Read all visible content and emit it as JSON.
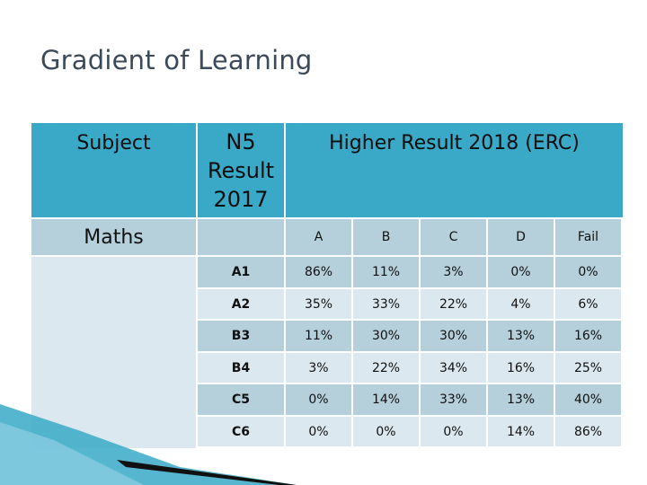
{
  "slide": {
    "title": "Gradient of Learning"
  },
  "table": {
    "subject_header": "Subject",
    "n5_header": "N5 Result 2017",
    "higher_header": "Higher Result 2018 (ERC)",
    "subject_value": "Maths",
    "grade_columns": [
      "A",
      "B",
      "C",
      "D",
      "Fail"
    ],
    "rows": [
      {
        "label": "A1",
        "values": [
          "86%",
          "11%",
          "3%",
          "0%",
          "0%"
        ]
      },
      {
        "label": "A2",
        "values": [
          "35%",
          "33%",
          "22%",
          "4%",
          "6%"
        ]
      },
      {
        "label": "B3",
        "values": [
          "11%",
          "30%",
          "30%",
          "13%",
          "16%"
        ]
      },
      {
        "label": "B4",
        "values": [
          "3%",
          "22%",
          "34%",
          "16%",
          "25%"
        ]
      },
      {
        "label": "C5",
        "values": [
          "0%",
          "14%",
          "33%",
          "13%",
          "40%"
        ]
      },
      {
        "label": "C6",
        "values": [
          "0%",
          "0%",
          "0%",
          "14%",
          "86%"
        ]
      }
    ]
  },
  "colors": {
    "header": "#3aa9c7",
    "row_dark": "#b5cfdb",
    "row_light": "#dbe8ef"
  }
}
